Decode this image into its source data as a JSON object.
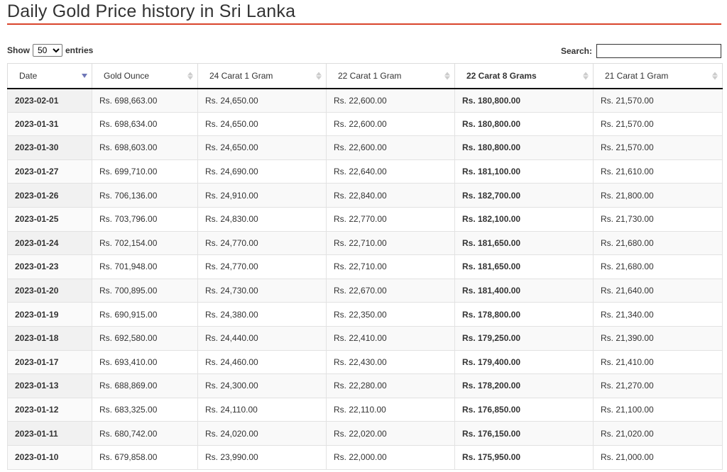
{
  "page": {
    "title": "Daily Gold Price history in Sri Lanka",
    "accent_color": "#d9442b",
    "sort_active_color": "#6f77b7"
  },
  "controls": {
    "show_label": "Show",
    "entries_label": "entries",
    "page_length": "50",
    "search_label": "Search:",
    "search_value": ""
  },
  "table": {
    "columns": [
      "Date",
      "Gold Ounce",
      "24 Carat 1 Gram",
      "22 Carat 1 Gram",
      "22 Carat 8 Grams",
      "21 Carat 1 Gram"
    ],
    "sort": {
      "column": "Date",
      "direction": "desc"
    },
    "rows": [
      [
        "2023-02-01",
        "Rs. 698,663.00",
        "Rs. 24,650.00",
        "Rs. 22,600.00",
        "Rs. 180,800.00",
        "Rs. 21,570.00"
      ],
      [
        "2023-01-31",
        "Rs. 698,634.00",
        "Rs. 24,650.00",
        "Rs. 22,600.00",
        "Rs. 180,800.00",
        "Rs. 21,570.00"
      ],
      [
        "2023-01-30",
        "Rs. 698,603.00",
        "Rs. 24,650.00",
        "Rs. 22,600.00",
        "Rs. 180,800.00",
        "Rs. 21,570.00"
      ],
      [
        "2023-01-27",
        "Rs. 699,710.00",
        "Rs. 24,690.00",
        "Rs. 22,640.00",
        "Rs. 181,100.00",
        "Rs. 21,610.00"
      ],
      [
        "2023-01-26",
        "Rs. 706,136.00",
        "Rs. 24,910.00",
        "Rs. 22,840.00",
        "Rs. 182,700.00",
        "Rs. 21,800.00"
      ],
      [
        "2023-01-25",
        "Rs. 703,796.00",
        "Rs. 24,830.00",
        "Rs. 22,770.00",
        "Rs. 182,100.00",
        "Rs. 21,730.00"
      ],
      [
        "2023-01-24",
        "Rs. 702,154.00",
        "Rs. 24,770.00",
        "Rs. 22,710.00",
        "Rs. 181,650.00",
        "Rs. 21,680.00"
      ],
      [
        "2023-01-23",
        "Rs. 701,948.00",
        "Rs. 24,770.00",
        "Rs. 22,710.00",
        "Rs. 181,650.00",
        "Rs. 21,680.00"
      ],
      [
        "2023-01-20",
        "Rs. 700,895.00",
        "Rs. 24,730.00",
        "Rs. 22,670.00",
        "Rs. 181,400.00",
        "Rs. 21,640.00"
      ],
      [
        "2023-01-19",
        "Rs. 690,915.00",
        "Rs. 24,380.00",
        "Rs. 22,350.00",
        "Rs. 178,800.00",
        "Rs. 21,340.00"
      ],
      [
        "2023-01-18",
        "Rs. 692,580.00",
        "Rs. 24,440.00",
        "Rs. 22,410.00",
        "Rs. 179,250.00",
        "Rs. 21,390.00"
      ],
      [
        "2023-01-17",
        "Rs. 693,410.00",
        "Rs. 24,460.00",
        "Rs. 22,430.00",
        "Rs. 179,400.00",
        "Rs. 21,410.00"
      ],
      [
        "2023-01-13",
        "Rs. 688,869.00",
        "Rs. 24,300.00",
        "Rs. 22,280.00",
        "Rs. 178,200.00",
        "Rs. 21,270.00"
      ],
      [
        "2023-01-12",
        "Rs. 683,325.00",
        "Rs. 24,110.00",
        "Rs. 22,110.00",
        "Rs. 176,850.00",
        "Rs. 21,100.00"
      ],
      [
        "2023-01-11",
        "Rs. 680,742.00",
        "Rs. 24,020.00",
        "Rs. 22,020.00",
        "Rs. 176,150.00",
        "Rs. 21,020.00"
      ],
      [
        "2023-01-10",
        "Rs. 679,858.00",
        "Rs. 23,990.00",
        "Rs. 22,000.00",
        "Rs. 175,950.00",
        "Rs. 21,000.00"
      ]
    ]
  }
}
